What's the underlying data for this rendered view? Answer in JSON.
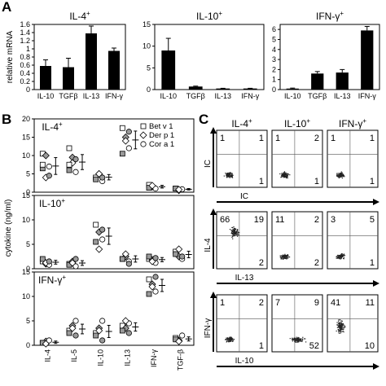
{
  "panel_letters": [
    "A",
    "B",
    "C"
  ],
  "chart_data": [
    {
      "type": "bar",
      "panel": "A",
      "title": "IL-4",
      "title_sup": "+",
      "ylabel": "relative mRNA",
      "categories": [
        "IL-10",
        "TGFβ",
        "IL-13",
        "IFN-γ"
      ],
      "values": [
        0.58,
        0.55,
        1.38,
        0.95
      ],
      "errors": [
        0.15,
        0.22,
        0.18,
        0.07
      ],
      "ylim": [
        0,
        1.6
      ],
      "yticks": [
        "0",
        "0.2",
        "0.4",
        "0.6",
        "0.8",
        "1",
        "1.2",
        "1.4",
        "1.6"
      ]
    },
    {
      "type": "bar",
      "panel": "A",
      "title": "IL-10",
      "title_sup": "+",
      "categories": [
        "IL-10",
        "TGFβ",
        "IL-13",
        "IFN-γ"
      ],
      "values": [
        9.0,
        0.7,
        0.25,
        0.25
      ],
      "errors": [
        2.8,
        0.1,
        0.05,
        0.05
      ],
      "ylim": [
        0,
        15
      ],
      "yticks": [
        "0",
        "5",
        "10",
        "15"
      ]
    },
    {
      "type": "bar",
      "panel": "A",
      "title": "IFN-γ",
      "title_sup": "+",
      "categories": [
        "IL-10",
        "TGFβ",
        "IL-13",
        "IFN-γ"
      ],
      "values": [
        0.1,
        1.6,
        1.7,
        5.9
      ],
      "errors": [
        0.05,
        0.2,
        0.3,
        0.4
      ],
      "ylim": [
        0,
        6.5
      ],
      "yticks": [
        "0",
        "1",
        "2",
        "3",
        "4",
        "5",
        "6"
      ]
    },
    {
      "type": "scatter",
      "panel": "B",
      "ylabel": "cytokine (ng/ml)",
      "categories": [
        "IL-4",
        "IL-5",
        "IL-10",
        "IL-13",
        "IFN-γ",
        "TGF-β"
      ],
      "legend": [
        "Bet v 1",
        "Der p 1",
        "Cor a 1"
      ],
      "legend_position": "top-right",
      "subplots": [
        {
          "label": "IL-4",
          "label_sup": "+",
          "ylim": [
            0,
            20
          ],
          "yticks": [
            "0",
            "5",
            "10",
            "15",
            "20"
          ],
          "points": [
            [
              10.5,
              10.0,
              7.0,
              6.5,
              4.0,
              4.5,
              7.5
            ],
            [
              12.0,
              9.5,
              5.5,
              6.0,
              8.0,
              9.0,
              7.5
            ],
            [
              4.0,
              5.0,
              3.0,
              3.5,
              5.0,
              4.0
            ],
            [
              17.5,
              15.0,
              12.0,
              10.5,
              14.0,
              16.5
            ],
            [
              2.0,
              1.5,
              1.0,
              1.2,
              1.8
            ],
            [
              1.0,
              0.5,
              0.8,
              1.0,
              0.7
            ]
          ]
        },
        {
          "label": "IL-10",
          "label_sup": "+",
          "ylim": [
            0,
            15
          ],
          "yticks": [
            "0",
            "5",
            "10",
            "15"
          ],
          "points": [
            [
              1.5,
              1.0,
              0.8,
              2.0,
              1.2,
              1.5
            ],
            [
              1.0,
              1.5,
              0.5,
              0.8,
              1.2,
              2.0
            ],
            [
              9.0,
              7.5,
              6.0,
              5.5,
              4.0,
              8.0
            ],
            [
              2.0,
              2.5,
              1.5,
              2.0,
              3.0,
              1.0
            ],
            [
              2.0,
              1.8,
              1.2,
              2.5,
              1.5,
              2.2
            ],
            [
              3.5,
              2.5,
              2.0,
              3.0,
              4.0,
              2.5
            ]
          ]
        },
        {
          "label": "IFN-γ",
          "label_sup": "+",
          "ylim": [
            0,
            15
          ],
          "yticks": [
            "0",
            "5",
            "10",
            "15"
          ],
          "points": [
            [
              0.5,
              0.8,
              1.0,
              0.5,
              0.3
            ],
            [
              3.0,
              4.0,
              5.0,
              2.5,
              3.5,
              2.0
            ],
            [
              2.5,
              3.5,
              5.0,
              2.0,
              3.0,
              1.0
            ],
            [
              4.0,
              3.5,
              4.5,
              3.0,
              5.0,
              2.5
            ],
            [
              13.5,
              12.5,
              11.0,
              10.5,
              12.0,
              14.0
            ],
            [
              1.5,
              1.0,
              2.0,
              1.2,
              0.8
            ]
          ]
        }
      ]
    },
    {
      "type": "scatter",
      "panel": "C",
      "columns": [
        {
          "title": "IL-4",
          "sup": "+"
        },
        {
          "title": "IL-10",
          "sup": "+"
        },
        {
          "title": "IFN-γ",
          "sup": "+"
        }
      ],
      "rows": [
        {
          "ylabel": "IC",
          "xlabel": "IC",
          "quadrants": [
            [
              "1",
              "1",
              "",
              "1"
            ],
            [
              "1",
              "2",
              "",
              "1"
            ],
            [
              "1",
              "1",
              "",
              "1"
            ]
          ]
        },
        {
          "ylabel": "IL-4",
          "xlabel": "IL-13",
          "quadrants": [
            [
              "66",
              "19",
              "",
              "2"
            ],
            [
              "11",
              "2",
              "",
              "2"
            ],
            [
              "3",
              "5",
              "",
              "1"
            ]
          ]
        },
        {
          "ylabel": "IFN-γ",
          "xlabel": "IL-10",
          "quadrants": [
            [
              "1",
              "2",
              "",
              "1"
            ],
            [
              "7",
              "9",
              "",
              "52"
            ],
            [
              "41",
              "11",
              "",
              "10"
            ]
          ]
        }
      ]
    }
  ]
}
